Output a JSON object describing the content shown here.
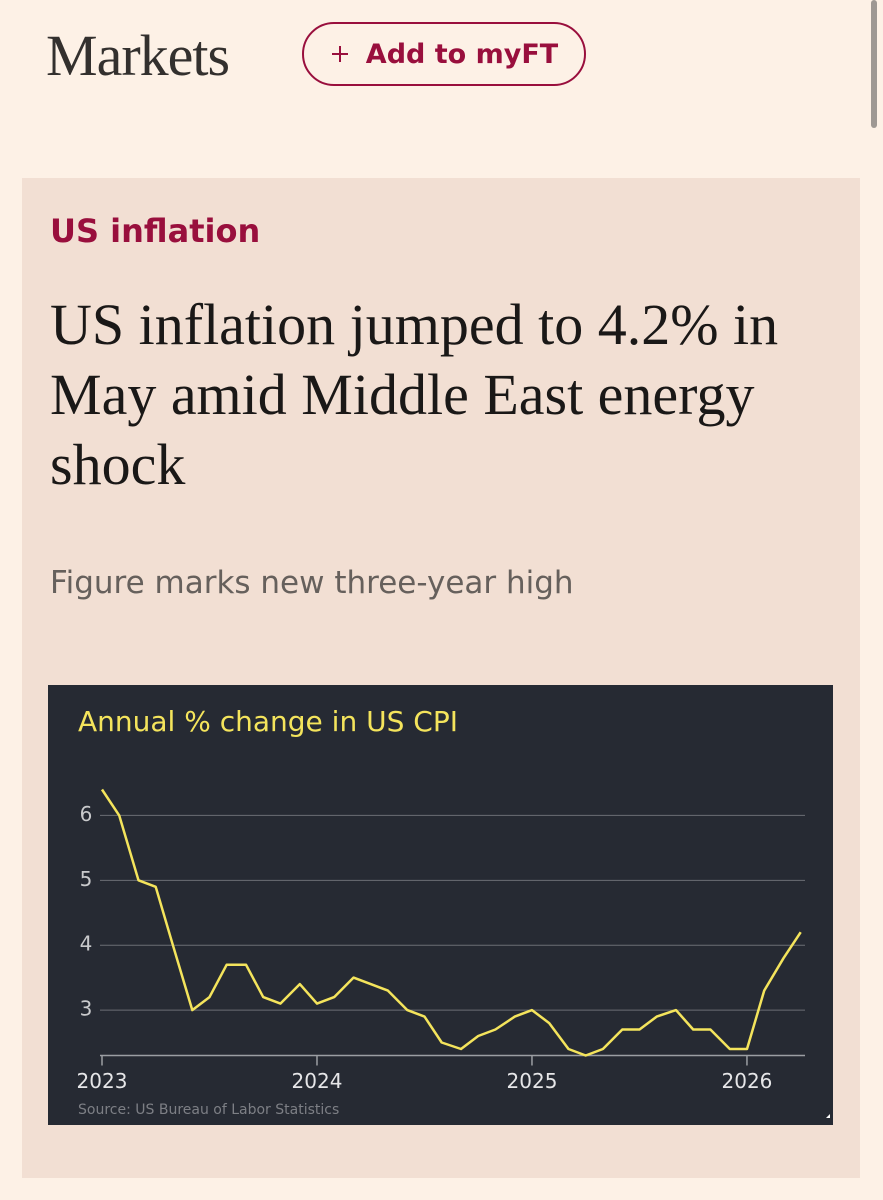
{
  "header": {
    "title": "Markets",
    "button": "Add to myFT"
  },
  "article": {
    "topic": "US inflation",
    "headline": "US inflation jumped to 4.2% in May amid Middle East energy shock",
    "standfirst": "Figure marks new three-year high"
  },
  "chart_data": {
    "type": "line",
    "title": "Annual % change in US CPI",
    "source": "Source: US Bureau of Labor Statistics",
    "x": [
      2023,
      2023.08,
      2023.17,
      2023.25,
      2023.33,
      2023.42,
      2023.5,
      2023.58,
      2023.67,
      2023.75,
      2023.83,
      2023.92,
      2024,
      2024.08,
      2024.17,
      2024.25,
      2024.33,
      2024.42,
      2024.5,
      2024.58,
      2024.67,
      2024.75,
      2024.83,
      2024.92,
      2025,
      2025.08,
      2025.17,
      2025.25,
      2025.33,
      2025.42,
      2025.5,
      2025.58,
      2025.67,
      2025.75,
      2025.83,
      2025.92,
      2026,
      2026.08,
      2026.17,
      2026.25
    ],
    "series": [
      {
        "name": "US CPI",
        "color": "#f4e45c",
        "values": [
          6.4,
          6.0,
          5.0,
          4.9,
          4.0,
          3.0,
          3.2,
          3.7,
          3.7,
          3.2,
          3.1,
          3.4,
          3.1,
          3.2,
          3.5,
          3.4,
          3.3,
          3.0,
          2.9,
          2.5,
          2.4,
          2.6,
          2.7,
          2.9,
          3.0,
          2.8,
          2.4,
          2.3,
          2.4,
          2.7,
          2.7,
          2.9,
          3.0,
          2.7,
          2.7,
          2.4,
          2.4,
          3.3,
          3.8,
          4.2
        ]
      }
    ],
    "xlim": [
      2023,
      2026.27
    ],
    "xticks": [
      2023,
      2024,
      2025,
      2026
    ],
    "ylim": [
      2.3,
      6.6
    ],
    "yticks": [
      3,
      4,
      5,
      6
    ],
    "grid": true
  }
}
